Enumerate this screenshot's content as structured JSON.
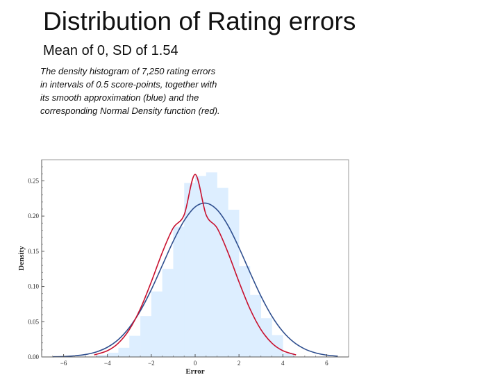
{
  "slide": {
    "title": "Distribution of Rating errors",
    "subtitle": "Mean of 0, SD of 1.54",
    "caption": "The density histogram of 7,250 rating errors in intervals of 0.5 score-points, together with its smooth approximation (blue) and the corresponding Normal Density function (red)."
  },
  "chart_data": {
    "type": "bar",
    "xlabel": "Error",
    "ylabel": "Density",
    "xlim": [
      -7,
      7
    ],
    "ylim": [
      0,
      0.28
    ],
    "x_ticks": [
      -6,
      -4,
      -2,
      0,
      2,
      4,
      6
    ],
    "y_ticks": [
      0.0,
      0.05,
      0.1,
      0.15,
      0.2,
      0.25
    ],
    "y_tick_labels": [
      "0.00",
      "0.05",
      "0.10",
      "0.15",
      "0.20",
      "0.25"
    ],
    "bin_width": 0.5,
    "histogram": {
      "bin_starts": [
        -4.5,
        -4.0,
        -3.5,
        -3.0,
        -2.5,
        -2.0,
        -1.5,
        -1.0,
        -0.5,
        0.0,
        0.5,
        1.0,
        1.5,
        2.0,
        2.5,
        3.0,
        3.5,
        4.0
      ],
      "values": [
        0.003,
        0.006,
        0.013,
        0.03,
        0.058,
        0.093,
        0.125,
        0.185,
        0.247,
        0.257,
        0.262,
        0.24,
        0.209,
        0.129,
        0.088,
        0.055,
        0.031,
        0.006
      ],
      "color": "#ddeeff"
    },
    "curves": [
      {
        "color": "#2f4f8f",
        "description": "smooth approximation",
        "x": [
          -6.5,
          -6,
          -5.5,
          -5,
          -4.5,
          -4,
          -3.5,
          -3,
          -2.5,
          -2,
          -1.5,
          -1,
          -0.5,
          0,
          0.5,
          1,
          1.5,
          2,
          2.5,
          3,
          3.5,
          4,
          4.5,
          5,
          5.5,
          6,
          6.5
        ],
        "y": [
          0.0002,
          0.0006,
          0.0016,
          0.0035,
          0.0072,
          0.0138,
          0.0248,
          0.0418,
          0.0655,
          0.0955,
          0.1298,
          0.1642,
          0.1935,
          0.213,
          0.2183,
          0.2089,
          0.1865,
          0.1551,
          0.1201,
          0.0865,
          0.0579,
          0.0361,
          0.0209,
          0.0113,
          0.0057,
          0.0026,
          0.0011
        ]
      },
      {
        "color": "#c8102e",
        "description": "Normal Density function",
        "x": [
          -4.6,
          -4,
          -3.5,
          -3,
          -2.5,
          -2,
          -1.5,
          -1,
          -0.5,
          0,
          0.5,
          1,
          1.5,
          2,
          2.5,
          3,
          3.5,
          4,
          4.6
        ],
        "y": [
          0.0029,
          0.0089,
          0.0197,
          0.0389,
          0.0683,
          0.1066,
          0.1481,
          0.1831,
          0.2018,
          0.2591,
          0.2018,
          0.1831,
          0.1481,
          0.1066,
          0.0683,
          0.0389,
          0.0197,
          0.0089,
          0.0029
        ]
      }
    ]
  }
}
